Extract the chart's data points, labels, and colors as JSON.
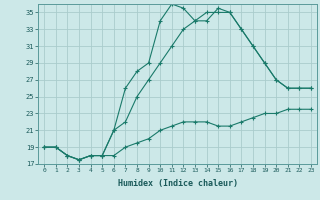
{
  "xlabel": "Humidex (Indice chaleur)",
  "bg_color": "#cce8e8",
  "grid_color": "#aacccc",
  "line_color": "#1a7a6a",
  "xlim": [
    -0.5,
    23.5
  ],
  "ylim": [
    17,
    36
  ],
  "xticks": [
    0,
    1,
    2,
    3,
    4,
    5,
    6,
    7,
    8,
    9,
    10,
    11,
    12,
    13,
    14,
    15,
    16,
    17,
    18,
    19,
    20,
    21,
    22,
    23
  ],
  "yticks": [
    17,
    19,
    21,
    23,
    25,
    27,
    29,
    31,
    33,
    35
  ],
  "line1_x": [
    0,
    1,
    2,
    3,
    4,
    5,
    6,
    7,
    8,
    9,
    10,
    11,
    12,
    13,
    14,
    15,
    16,
    17,
    18,
    19,
    20,
    21,
    22,
    23
  ],
  "line1_y": [
    19,
    19,
    18,
    17.5,
    18,
    18,
    18,
    19,
    19.5,
    20,
    21,
    21.5,
    22,
    22,
    22,
    21.5,
    21.5,
    22,
    22.5,
    23,
    23,
    23.5,
    23.5,
    23.5
  ],
  "line2_x": [
    0,
    1,
    2,
    3,
    4,
    5,
    6,
    7,
    8,
    9,
    10,
    11,
    12,
    13,
    14,
    15,
    16,
    17,
    18,
    19,
    20,
    21,
    22,
    23
  ],
  "line2_y": [
    19,
    19,
    18,
    17.5,
    18,
    18,
    21,
    22,
    25,
    27,
    29,
    31,
    33,
    34,
    35,
    35,
    35,
    33,
    31,
    29,
    27,
    26,
    26,
    26
  ],
  "line3_x": [
    0,
    1,
    2,
    3,
    4,
    5,
    6,
    7,
    8,
    9,
    10,
    11,
    12,
    13,
    14,
    15,
    16,
    17,
    18,
    19,
    20,
    21,
    22,
    23
  ],
  "line3_y": [
    19,
    19,
    18,
    17.5,
    18,
    18,
    21,
    26,
    28,
    29,
    34,
    36,
    35.5,
    34,
    34,
    35.5,
    35,
    33,
    31,
    29,
    27,
    26,
    26,
    26
  ]
}
